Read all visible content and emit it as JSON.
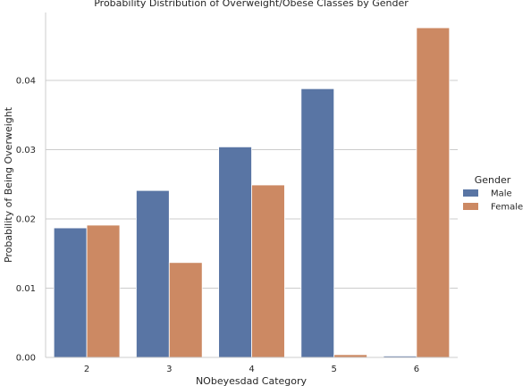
{
  "chart_data": {
    "type": "bar",
    "title": "Probability Distribution of Overweight/Obese Classes by Gender",
    "xlabel": "NObeyesdad Category",
    "ylabel": "Probability of Being Overweight",
    "categories": [
      "2",
      "3",
      "4",
      "5",
      "6"
    ],
    "series": [
      {
        "name": "Male",
        "color": "#5975a4",
        "values": [
          0.0187,
          0.0241,
          0.0304,
          0.0388,
          0.0002
        ]
      },
      {
        "name": "Female",
        "color": "#cc8963",
        "values": [
          0.0191,
          0.0137,
          0.0249,
          0.0004,
          0.0476
        ]
      }
    ],
    "ylim": [
      0,
      0.0498
    ],
    "yticks": [
      "0.00",
      "0.01",
      "0.02",
      "0.03",
      "0.04"
    ],
    "ytick_values": [
      0,
      0.01,
      0.02,
      0.03,
      0.04
    ],
    "grid": true,
    "legend": {
      "title": "Gender",
      "placement": "center-right",
      "labels": [
        "Male",
        "Female"
      ]
    }
  }
}
